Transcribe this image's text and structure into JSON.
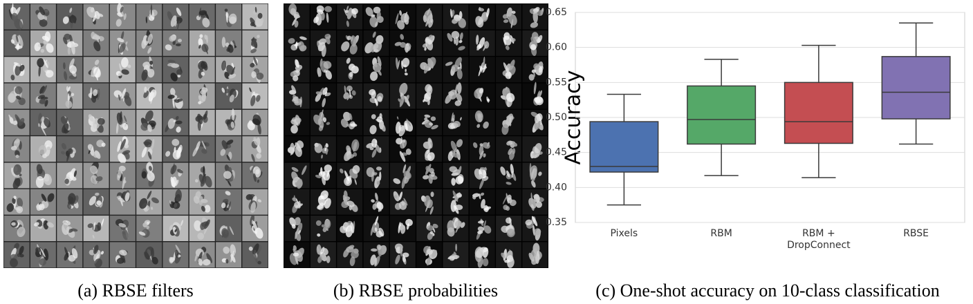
{
  "panels": [
    {
      "caption": "(a) RBSE filters"
    },
    {
      "caption": "(b) RBSE probabilities"
    }
  ],
  "chart_data": {
    "type": "box",
    "caption": "(c) One-shot accuracy on 10-class classification",
    "ylabel": "Accuracy",
    "categories": [
      "Pixels",
      "RBM",
      "RBM +\nDropConnect",
      "RBSE"
    ],
    "boxes": [
      {
        "color": "#4c72b0",
        "whislo": 0.375,
        "q1": 0.422,
        "med": 0.43,
        "q3": 0.494,
        "whishi": 0.533
      },
      {
        "color": "#55a868",
        "whislo": 0.417,
        "q1": 0.462,
        "med": 0.497,
        "q3": 0.545,
        "whishi": 0.583
      },
      {
        "color": "#c44e52",
        "whislo": 0.414,
        "q1": 0.463,
        "med": 0.494,
        "q3": 0.55,
        "whishi": 0.603
      },
      {
        "color": "#8172b2",
        "whislo": 0.462,
        "q1": 0.498,
        "med": 0.536,
        "q3": 0.587,
        "whishi": 0.635
      }
    ],
    "ylim": [
      0.35,
      0.65
    ],
    "yticks": [
      0.35,
      {
        "value": 0.4,
        "label": "0.40"
      },
      0.45,
      {
        "value": 0.5,
        "label": "0.50"
      },
      0.55,
      {
        "value": 0.6,
        "label": "0.60"
      },
      0.65
    ],
    "grid": true
  }
}
